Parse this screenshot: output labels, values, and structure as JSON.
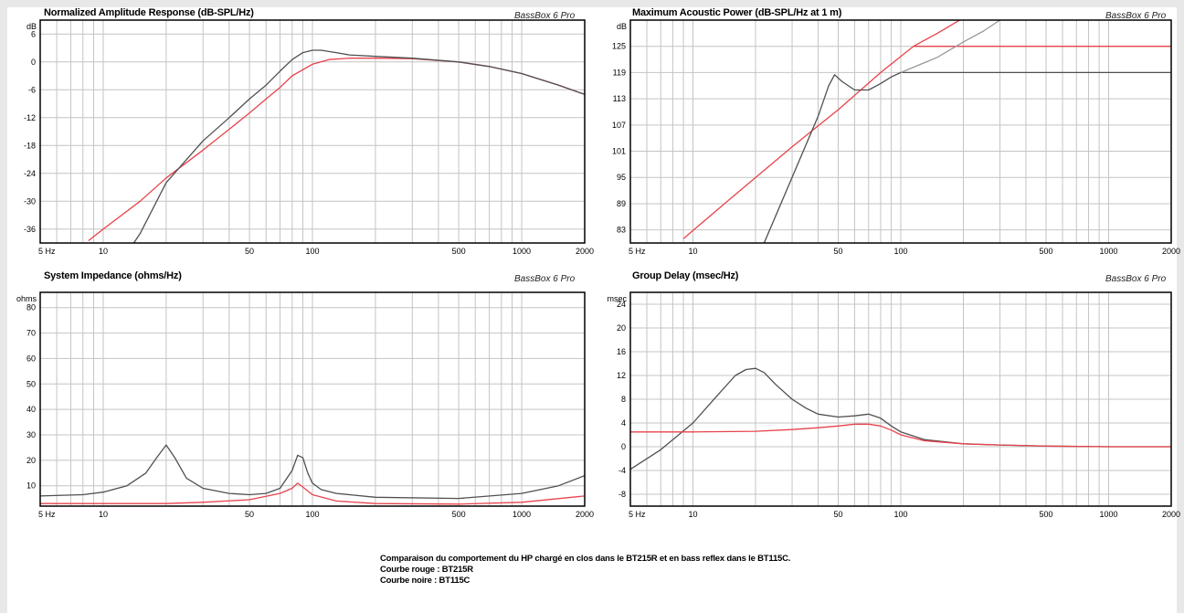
{
  "brand": "BassBox 6 Pro",
  "colors": {
    "red_series": "#e8434b",
    "black_series": "#505050",
    "grey_series": "#9a9a9a",
    "grid": "#c4c4c4",
    "frame": "#000000"
  },
  "caption": {
    "line1": "Comparaison du comportement du HP chargé en clos dans le BT215R et en bass reflex dans le BT115C.",
    "line2": "Courbe rouge : BT215R",
    "line3": "Courbe noire : BT115C"
  },
  "chart_data": [
    {
      "type": "line",
      "title": "Normalized Amplitude Response (dB-SPL/Hz)",
      "brand": "BassBox 6 Pro",
      "ylabel": "dB",
      "xscale": "log",
      "xlim": [
        5,
        2000
      ],
      "ylim": [
        -39,
        9
      ],
      "x_ticks": [
        "5 Hz",
        "10",
        "50",
        "100",
        "500",
        "1000",
        "2000"
      ],
      "x_tick_values": [
        5,
        10,
        50,
        100,
        500,
        1000,
        2000
      ],
      "y_ticks": [
        6,
        0,
        -6,
        -12,
        -18,
        -24,
        -30,
        -36
      ],
      "grid": true,
      "series": [
        {
          "color": "#e8434b",
          "x": [
            8.5,
            10,
            15,
            20,
            30,
            40,
            50,
            60,
            70,
            80,
            100,
            120,
            150,
            200,
            300,
            500,
            700,
            1000,
            1500,
            2000
          ],
          "y": [
            -38.5,
            -36,
            -30,
            -25,
            -19,
            -14.5,
            -11,
            -8,
            -5.5,
            -3,
            -0.5,
            0.5,
            0.8,
            0.8,
            0.7,
            0,
            -1,
            -2.5,
            -5,
            -7
          ]
        },
        {
          "color": "#505050",
          "x": [
            14,
            15,
            20,
            30,
            40,
            50,
            60,
            70,
            80,
            90,
            100,
            110,
            130,
            150,
            200,
            300,
            500,
            700,
            1000,
            1500,
            2000
          ],
          "y": [
            -39,
            -37,
            -26,
            -17,
            -12,
            -8,
            -5,
            -2,
            0.5,
            2,
            2.5,
            2.5,
            2,
            1.5,
            1.2,
            0.8,
            0,
            -1,
            -2.5,
            -5,
            -7
          ]
        }
      ]
    },
    {
      "type": "line",
      "title": "Maximum Acoustic Power (dB-SPL/Hz at 1 m)",
      "brand": "BassBox 6 Pro",
      "ylabel": "dB",
      "xscale": "log",
      "xlim": [
        5,
        2000
      ],
      "ylim": [
        80,
        131
      ],
      "x_ticks": [
        "5 Hz",
        "10",
        "50",
        "100",
        "500",
        "1000",
        "2000"
      ],
      "x_tick_values": [
        5,
        10,
        50,
        100,
        500,
        1000,
        2000
      ],
      "y_ticks": [
        125,
        119,
        113,
        107,
        101,
        95,
        89,
        83
      ],
      "grid": true,
      "series": [
        {
          "color": "#e8434b",
          "x": [
            9,
            15,
            30,
            50,
            80,
            115,
            150,
            200,
            300
          ],
          "y": [
            81,
            90,
            102,
            110.5,
            119,
            125,
            128,
            131.5,
            136
          ]
        },
        {
          "color": "#e8434b",
          "x": [
            115,
            2000
          ],
          "y": [
            125,
            125
          ]
        },
        {
          "color": "#505050",
          "x": [
            22,
            30,
            40,
            45,
            48,
            52,
            60,
            70,
            80,
            90,
            100
          ],
          "y": [
            80,
            95,
            109,
            116,
            118.5,
            117,
            115,
            115,
            116.5,
            118,
            119
          ]
        },
        {
          "color": "#505050",
          "x": [
            100,
            2000
          ],
          "y": [
            119,
            119
          ]
        },
        {
          "color": "#9a9a9a",
          "x": [
            100,
            150,
            200,
            250,
            300,
            400
          ],
          "y": [
            119,
            122.5,
            126,
            128.5,
            131,
            136
          ]
        }
      ]
    },
    {
      "type": "line",
      "title": "System Impedance (ohms/Hz)",
      "brand": "BassBox 6 Pro",
      "ylabel": "ohms",
      "xscale": "log",
      "xlim": [
        5,
        2000
      ],
      "ylim": [
        2,
        86
      ],
      "x_ticks": [
        "5 Hz",
        "10",
        "50",
        "100",
        "500",
        "1000",
        "2000"
      ],
      "x_tick_values": [
        5,
        10,
        50,
        100,
        500,
        1000,
        2000
      ],
      "y_ticks": [
        80,
        70,
        60,
        50,
        40,
        30,
        20,
        10
      ],
      "grid": true,
      "series": [
        {
          "color": "#505050",
          "x": [
            5,
            8,
            10,
            13,
            16,
            18,
            20,
            22,
            25,
            30,
            40,
            50,
            60,
            70,
            80,
            85,
            90,
            95,
            100,
            110,
            130,
            200,
            500,
            1000,
            1500,
            2000
          ],
          "y": [
            6,
            6.5,
            7.5,
            10,
            15,
            21,
            26,
            21,
            13,
            9,
            7,
            6.5,
            7,
            9,
            16,
            22,
            21,
            15,
            11,
            8.5,
            7,
            5.5,
            5,
            7,
            10,
            14
          ]
        },
        {
          "color": "#e8434b",
          "x": [
            5,
            10,
            20,
            30,
            50,
            70,
            80,
            85,
            90,
            100,
            130,
            200,
            500,
            1000,
            2000
          ],
          "y": [
            3,
            3,
            3,
            3.5,
            4.5,
            7,
            9,
            11,
            9.5,
            6.5,
            4,
            3,
            2.8,
            3.5,
            6
          ]
        }
      ]
    },
    {
      "type": "line",
      "title": "Group Delay (msec/Hz)",
      "brand": "BassBox 6 Pro",
      "ylabel": "msec",
      "xscale": "log",
      "xlim": [
        5,
        2000
      ],
      "ylim": [
        -10,
        26
      ],
      "x_ticks": [
        "5 Hz",
        "10",
        "50",
        "100",
        "500",
        "1000",
        "2000"
      ],
      "x_tick_values": [
        5,
        10,
        50,
        100,
        500,
        1000,
        2000
      ],
      "y_ticks": [
        24,
        20,
        16,
        12,
        8,
        4,
        0,
        -4,
        -8
      ],
      "grid": true,
      "series": [
        {
          "color": "#505050",
          "x": [
            5,
            7,
            10,
            13,
            16,
            18,
            20,
            22,
            25,
            30,
            35,
            40,
            50,
            60,
            70,
            80,
            90,
            100,
            130,
            200,
            300,
            500,
            1000,
            2000
          ],
          "y": [
            -3.8,
            -0.5,
            4,
            8.5,
            12,
            13,
            13.2,
            12.5,
            10.5,
            8,
            6.5,
            5.5,
            5,
            5.2,
            5.5,
            4.8,
            3.5,
            2.5,
            1.2,
            0.5,
            0.3,
            0.1,
            0,
            0
          ]
        },
        {
          "color": "#e8434b",
          "x": [
            5,
            10,
            20,
            30,
            40,
            50,
            60,
            70,
            80,
            90,
            100,
            130,
            200,
            300,
            500,
            1000,
            2000
          ],
          "y": [
            2.5,
            2.5,
            2.6,
            2.9,
            3.2,
            3.5,
            3.8,
            3.8,
            3.5,
            2.8,
            2,
            1,
            0.5,
            0.3,
            0.1,
            0,
            0
          ]
        }
      ]
    }
  ]
}
